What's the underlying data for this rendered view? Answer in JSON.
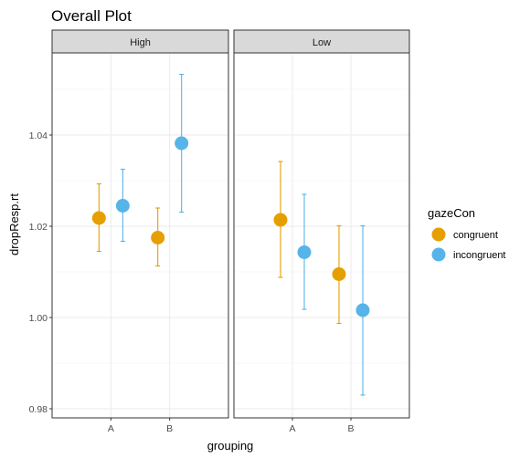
{
  "chart_data": {
    "type": "scatter",
    "subtype": "dot-and-errorbar, faceted",
    "title": "Overall Plot",
    "xlabel": "grouping",
    "ylabel": "dropResp.rt",
    "ylim": [
      0.978,
      1.058
    ],
    "yticks": [
      0.98,
      1.0,
      1.02,
      1.04
    ],
    "ytick_labels": [
      "0.98",
      "1.00",
      "1.02",
      "1.04"
    ],
    "categories": [
      "A",
      "B"
    ],
    "grid": true,
    "legend": {
      "title": "gazeCon",
      "position": "right"
    },
    "series": [
      {
        "name": "congruent",
        "color": "#E69F00"
      },
      {
        "name": "incongruent",
        "color": "#56B4E9"
      }
    ],
    "facets": [
      {
        "label": "High",
        "points": [
          {
            "group": "A",
            "series": "congruent",
            "y": 1.0218,
            "ymin": 1.0145,
            "ymax": 1.0293
          },
          {
            "group": "A",
            "series": "incongruent",
            "y": 1.0245,
            "ymin": 1.0167,
            "ymax": 1.0325
          },
          {
            "group": "B",
            "series": "congruent",
            "y": 1.0175,
            "ymin": 1.0113,
            "ymax": 1.024
          },
          {
            "group": "B",
            "series": "incongruent",
            "y": 1.0382,
            "ymin": 1.0231,
            "ymax": 1.0533
          }
        ]
      },
      {
        "label": "Low",
        "points": [
          {
            "group": "A",
            "series": "congruent",
            "y": 1.0214,
            "ymin": 1.0088,
            "ymax": 1.0342
          },
          {
            "group": "A",
            "series": "incongruent",
            "y": 1.0143,
            "ymin": 1.0018,
            "ymax": 1.027
          },
          {
            "group": "B",
            "series": "congruent",
            "y": 1.0095,
            "ymin": 0.9987,
            "ymax": 1.0201
          },
          {
            "group": "B",
            "series": "incongruent",
            "y": 1.0016,
            "ymin": 0.983,
            "ymax": 1.0201
          }
        ]
      }
    ]
  }
}
